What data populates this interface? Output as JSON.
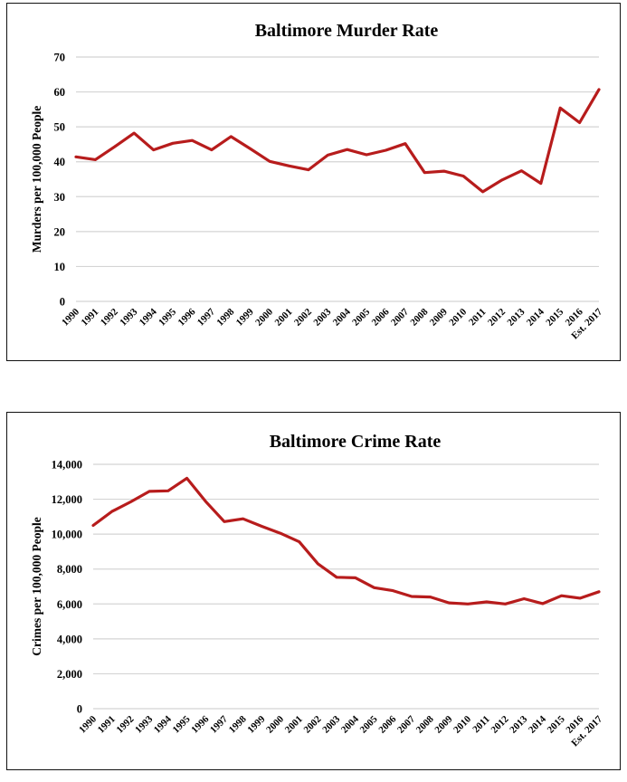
{
  "chart_data": [
    {
      "type": "line",
      "title": "Baltimore Murder Rate",
      "xlabel": "",
      "ylabel": "Murders per 100,000 People",
      "ylim": [
        0,
        70
      ],
      "yticks": [
        0,
        10,
        20,
        30,
        40,
        50,
        60,
        70
      ],
      "ytick_labels": [
        "0",
        "10",
        "20",
        "30",
        "40",
        "50",
        "60",
        "70"
      ],
      "grid": true,
      "legend": "none",
      "color": "#B71C1C",
      "categories": [
        "1990",
        "1991",
        "1992",
        "1993",
        "1994",
        "1995",
        "1996",
        "1997",
        "1998",
        "1999",
        "2000",
        "2001",
        "2002",
        "2003",
        "2004",
        "2005",
        "2006",
        "2007",
        "2008",
        "2009",
        "2010",
        "2011",
        "2012",
        "2013",
        "2014",
        "2015",
        "2016",
        "Est. 2017"
      ],
      "values": [
        41.4,
        40.6,
        44.3,
        48.2,
        43.4,
        45.3,
        46.1,
        43.4,
        47.2,
        43.7,
        40.1,
        38.8,
        37.7,
        41.9,
        43.5,
        42.0,
        43.3,
        45.2,
        36.9,
        37.3,
        35.9,
        31.4,
        34.8,
        37.4,
        33.8,
        55.4,
        51.2,
        60.7
      ]
    },
    {
      "type": "line",
      "title": "Baltimore Crime Rate",
      "xlabel": "",
      "ylabel": "Crimes per 100,000 People",
      "ylim": [
        0,
        14000
      ],
      "yticks": [
        0,
        2000,
        4000,
        6000,
        8000,
        10000,
        12000,
        14000
      ],
      "ytick_labels": [
        "0",
        "2,000",
        "4,000",
        "6,000",
        "8,000",
        "10,000",
        "12,000",
        "14,000"
      ],
      "grid": true,
      "legend": "none",
      "color": "#B71C1C",
      "categories": [
        "1990",
        "1991",
        "1992",
        "1993",
        "1994",
        "1995",
        "1996",
        "1997",
        "1998",
        "1999",
        "2000",
        "2001",
        "2002",
        "2003",
        "2004",
        "2005",
        "2006",
        "2007",
        "2008",
        "2009",
        "2010",
        "2011",
        "2012",
        "2013",
        "2014",
        "2015",
        "2016",
        "Est. 2017"
      ],
      "values": [
        10500,
        11300,
        11850,
        12450,
        12480,
        13200,
        11880,
        10720,
        10880,
        10450,
        10050,
        9560,
        8300,
        7530,
        7500,
        6930,
        6760,
        6430,
        6400,
        6060,
        6000,
        6120,
        6000,
        6300,
        6020,
        6470,
        6330,
        6700
      ]
    }
  ]
}
